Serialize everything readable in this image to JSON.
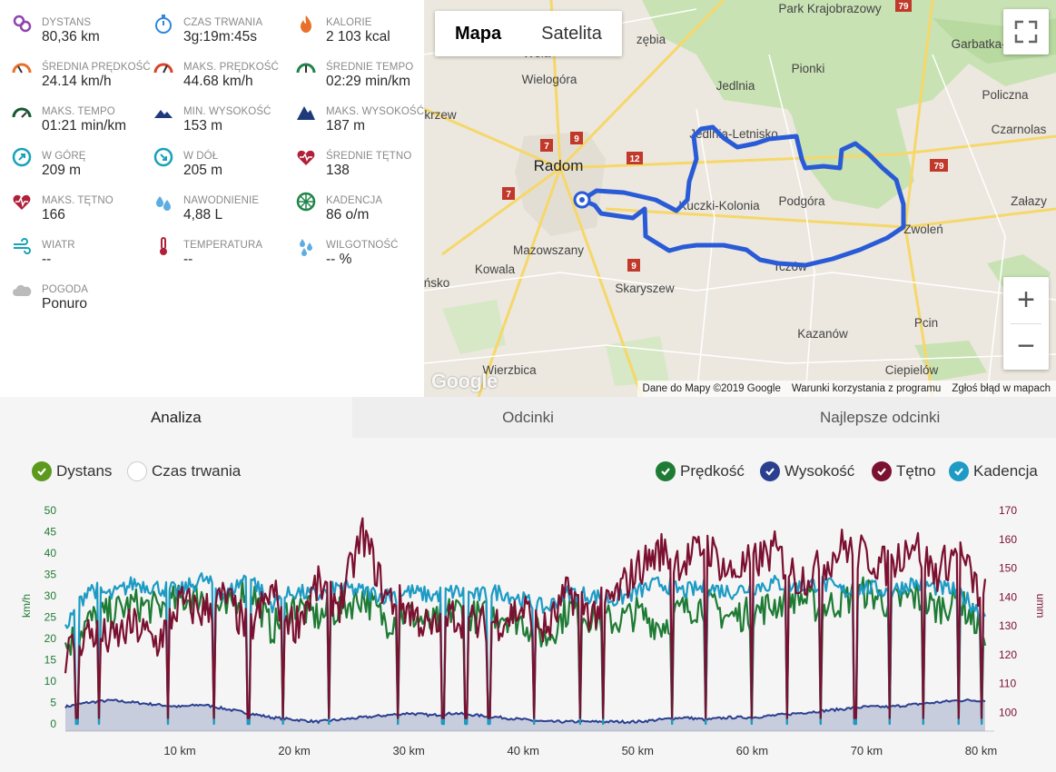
{
  "stats": [
    {
      "label": "DYSTANS",
      "value": "80,36 km",
      "icon": "distance-pin-icon",
      "color": "#8e44ad"
    },
    {
      "label": "CZAS TRWANIA",
      "value": "3g:19m:45s",
      "icon": "stopwatch-icon",
      "color": "#2e86de"
    },
    {
      "label": "KALORIE",
      "value": "2 103 kcal",
      "icon": "flame-icon",
      "color": "#e8702a"
    },
    {
      "label": "ŚREDNIA PRĘDKOŚĆ",
      "value": "24.14 km/h",
      "icon": "speedometer-icon",
      "color": "#e8702a"
    },
    {
      "label": "MAKS. PRĘDKOŚĆ",
      "value": "44.68 km/h",
      "icon": "speedometer-max-icon",
      "color": "#d9452b"
    },
    {
      "label": "ŚREDNIE TEMPO",
      "value": "02:29 min/km",
      "icon": "pace-gauge-icon",
      "color": "#1e8449"
    },
    {
      "label": "MAKS. TEMPO",
      "value": "01:21 min/km",
      "icon": "pace-gauge-max-icon",
      "color": "#145a32"
    },
    {
      "label": "MIN. WYSOKOŚĆ",
      "value": "153 m",
      "icon": "mountain-low-icon",
      "color": "#1f3a7a"
    },
    {
      "label": "MAKS. WYSOKOŚĆ",
      "value": "187 m",
      "icon": "mountain-high-icon",
      "color": "#1f3a7a"
    },
    {
      "label": "W GÓRĘ",
      "value": "209 m",
      "icon": "ascent-compass-icon",
      "color": "#17a2b8"
    },
    {
      "label": "W DÓŁ",
      "value": "205 m",
      "icon": "descent-compass-icon",
      "color": "#17a2b8"
    },
    {
      "label": "ŚREDNIE TĘTNO",
      "value": "138",
      "icon": "heart-rate-icon",
      "color": "#b0203a"
    },
    {
      "label": "MAKS. TĘTNO",
      "value": "166",
      "icon": "heart-max-icon",
      "color": "#b0203a"
    },
    {
      "label": "NAWODNIENIE",
      "value": "4,88 L",
      "icon": "water-drops-icon",
      "color": "#5dade2"
    },
    {
      "label": "KADENCJA",
      "value": "86 o/m",
      "icon": "cadence-wheel-icon",
      "color": "#1e8449"
    },
    {
      "label": "WIATR",
      "value": "--",
      "icon": "wind-icon",
      "color": "#17a2b8"
    },
    {
      "label": "TEMPERATURA",
      "value": "--",
      "icon": "thermometer-icon",
      "color": "#b0203a"
    },
    {
      "label": "WILGOTNOŚĆ",
      "value": "-- %",
      "icon": "humidity-icon",
      "color": "#5dade2"
    },
    {
      "label": "POGODA",
      "value": "Ponuro",
      "icon": "cloud-icon",
      "color": "#bbbbbb"
    }
  ],
  "map": {
    "toggle": {
      "map_label": "Mapa",
      "satellite_label": "Satelita"
    },
    "zoom_in": "+",
    "zoom_out": "−",
    "attribution": [
      "Dane do Mapy ©2019 Google",
      "Warunki korzystania z programu",
      "Zgłoś błąd w mapach"
    ],
    "logo": "Google",
    "places": [
      {
        "name": "Park Krajobrazowy"
      },
      {
        "name": "Garbatka-Letnisk"
      },
      {
        "name": "Pionki"
      },
      {
        "name": "Jedlnia"
      },
      {
        "name": "Policzna"
      },
      {
        "name": "Czarnolas"
      },
      {
        "name": "Wielogóra"
      },
      {
        "name": "Jedlnia-Letnisko"
      },
      {
        "name": "Radom"
      },
      {
        "name": "Kuczki-Kolonia"
      },
      {
        "name": "Podgóra"
      },
      {
        "name": "Zwoleń"
      },
      {
        "name": "Załazy"
      },
      {
        "name": "Mazowszany"
      },
      {
        "name": "Kowala"
      },
      {
        "name": "Skaryszew"
      },
      {
        "name": "Tczów"
      },
      {
        "name": "Kazanów"
      },
      {
        "name": "Pcin"
      },
      {
        "name": "Wierzbica"
      },
      {
        "name": "Ciepielów"
      },
      {
        "name": "zębia"
      },
      {
        "name": "Wola"
      },
      {
        "name": "krzew"
      },
      {
        "name": "ńsko"
      }
    ],
    "roads": [
      "79",
      "7",
      "9",
      "12",
      "7",
      "79",
      "9"
    ],
    "route_color": "#2a5bd7"
  },
  "tabs": [
    "Analiza",
    "Odcinki",
    "Najlepsze odcinki"
  ],
  "chart_toggles": {
    "x_mode": [
      {
        "label": "Dystans",
        "checked": true,
        "color": "#5b9a1c"
      },
      {
        "label": "Czas trwania",
        "checked": false,
        "color": "#ffffff"
      }
    ],
    "series": [
      {
        "label": "Prędkość",
        "checked": true,
        "color": "#1e7b34"
      },
      {
        "label": "Wysokość",
        "checked": true,
        "color": "#2b3f8f"
      },
      {
        "label": "Tętno",
        "checked": true,
        "color": "#7b1030"
      },
      {
        "label": "Kadencja",
        "checked": true,
        "color": "#1d9bc4"
      }
    ]
  },
  "chart_data": {
    "type": "line",
    "x_label": "",
    "x_unit": "km",
    "x_ticks": [
      "10 km",
      "20 km",
      "30 km",
      "40 km",
      "50 km",
      "60 km",
      "70 km",
      "80 km"
    ],
    "x_tick_values": [
      10,
      20,
      30,
      40,
      50,
      60,
      70,
      80
    ],
    "xlim": [
      0,
      80.36
    ],
    "y_left": {
      "label": "km/h",
      "ticks": [
        0,
        5,
        10,
        15,
        20,
        25,
        30,
        35,
        40,
        45,
        50
      ],
      "ylim": [
        0,
        50
      ],
      "color": "#1e7b34"
    },
    "y_right": {
      "label": "umm",
      "ticks": [
        100,
        110,
        120,
        130,
        140,
        150,
        160,
        170
      ],
      "ylim": [
        96,
        170
      ],
      "color": "#7b1030"
    },
    "series": [
      {
        "name": "Prędkość",
        "axis": "left",
        "color": "#1e7b34",
        "x": [
          0,
          2,
          4,
          6,
          8,
          10,
          12,
          14,
          16,
          18,
          20,
          22,
          24,
          26,
          28,
          30,
          32,
          34,
          36,
          38,
          40,
          42,
          44,
          46,
          48,
          50,
          52,
          54,
          56,
          58,
          60,
          62,
          64,
          66,
          68,
          70,
          72,
          74,
          76,
          78,
          80
        ],
        "values": [
          18,
          24,
          26,
          28,
          27,
          29,
          30,
          26,
          33,
          22,
          28,
          25,
          27,
          30,
          24,
          26,
          23,
          27,
          25,
          26,
          24,
          20,
          27,
          25,
          24,
          26,
          23,
          27,
          28,
          25,
          26,
          28,
          30,
          27,
          29,
          31,
          28,
          30,
          27,
          29,
          22
        ]
      },
      {
        "name": "Wysokość",
        "axis": "left",
        "color": "#2b3f8f",
        "x": [
          0,
          2,
          4,
          6,
          8,
          10,
          12,
          14,
          16,
          18,
          20,
          22,
          24,
          26,
          28,
          30,
          32,
          34,
          36,
          38,
          40,
          42,
          44,
          46,
          48,
          50,
          52,
          54,
          56,
          58,
          60,
          62,
          64,
          66,
          68,
          70,
          72,
          74,
          76,
          78,
          80
        ],
        "values": [
          4,
          5,
          5.5,
          5,
          4.5,
          4,
          4.5,
          3.5,
          2.5,
          1.5,
          1,
          0.5,
          1,
          1.5,
          2,
          2.5,
          2,
          2.5,
          2,
          1.5,
          1,
          0.5,
          0.5,
          0.5,
          0.5,
          0.5,
          1,
          1.5,
          1,
          1.5,
          1.5,
          2,
          2.5,
          3,
          3.5,
          4,
          4,
          4.5,
          5,
          5.5,
          5.5
        ]
      },
      {
        "name": "Tętno",
        "axis": "right",
        "color": "#7b1030",
        "x": [
          0,
          2,
          4,
          6,
          8,
          10,
          12,
          14,
          16,
          18,
          20,
          22,
          24,
          26,
          28,
          30,
          32,
          34,
          36,
          38,
          40,
          42,
          44,
          46,
          48,
          50,
          52,
          54,
          56,
          58,
          60,
          62,
          64,
          66,
          68,
          70,
          72,
          74,
          76,
          78,
          80
        ],
        "values": [
          120,
          128,
          125,
          130,
          124,
          138,
          135,
          140,
          128,
          142,
          130,
          144,
          138,
          162,
          140,
          136,
          128,
          134,
          130,
          132,
          136,
          128,
          142,
          134,
          140,
          150,
          156,
          152,
          158,
          148,
          152,
          156,
          146,
          150,
          158,
          154,
          150,
          160,
          148,
          156,
          140
        ]
      },
      {
        "name": "Kadencja",
        "axis": "left",
        "color": "#1d9bc4",
        "x": [
          0,
          2,
          4,
          6,
          8,
          10,
          12,
          14,
          16,
          18,
          20,
          22,
          24,
          26,
          28,
          30,
          32,
          34,
          36,
          38,
          40,
          42,
          44,
          46,
          48,
          50,
          52,
          54,
          56,
          58,
          60,
          62,
          64,
          66,
          68,
          70,
          72,
          74,
          76,
          78,
          80
        ],
        "values": [
          22,
          32,
          30,
          33,
          32,
          31,
          34,
          30,
          35,
          28,
          31,
          30,
          32,
          31,
          30,
          31,
          30,
          31,
          30,
          31,
          29,
          27,
          31,
          30,
          29,
          31,
          33,
          31,
          32,
          31,
          32,
          33,
          32,
          33,
          31,
          32,
          31,
          33,
          32,
          31,
          26
        ]
      }
    ],
    "drop_to_zero_at_km": [
      1,
      3,
      9,
      13,
      16,
      19,
      23,
      29,
      33,
      35,
      37,
      41,
      45,
      47,
      53,
      56,
      60,
      63,
      66,
      69,
      72,
      75,
      78,
      80
    ],
    "grid": false,
    "legend_position": "top-right"
  }
}
